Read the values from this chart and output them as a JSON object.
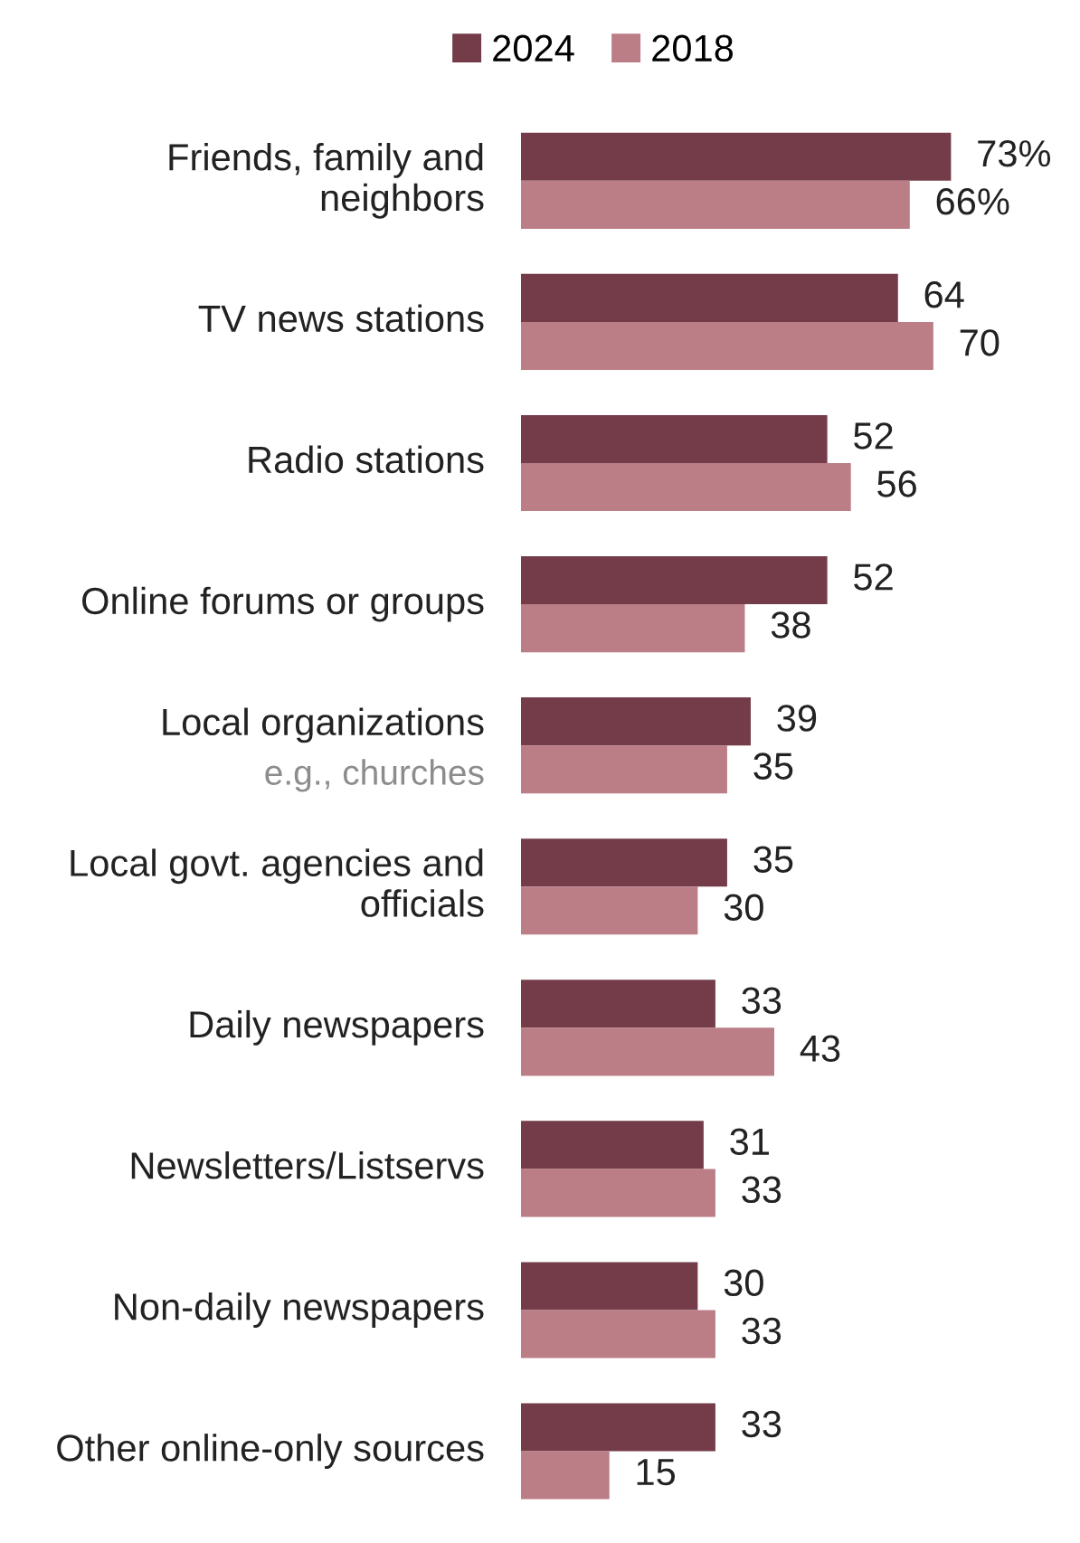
{
  "chart_data": {
    "type": "bar",
    "orientation": "horizontal",
    "legend": "top",
    "categories": [
      "Friends, family and neighbors",
      "TV news stations",
      "Radio stations",
      "Online forums or groups",
      "Local organizations\ne.g., churches",
      "Local govt. agencies and officials",
      "Daily newspapers",
      "Newsletters/Listservs",
      "Non-daily newspapers",
      "Other online-only sources"
    ],
    "series": [
      {
        "name": "2024",
        "color": "#733c48",
        "values": [
          73,
          64,
          52,
          52,
          39,
          35,
          33,
          31,
          30,
          33
        ],
        "value_labels": [
          "73%",
          "64",
          "52",
          "52",
          "39",
          "35",
          "33",
          "31",
          "30",
          "33"
        ]
      },
      {
        "name": "2018",
        "color": "#bb7d86",
        "values": [
          66,
          70,
          56,
          38,
          35,
          30,
          43,
          33,
          33,
          15
        ],
        "value_labels": [
          "66%",
          "70",
          "56",
          "38",
          "35",
          "30",
          "43",
          "33",
          "33",
          "15"
        ]
      }
    ]
  }
}
